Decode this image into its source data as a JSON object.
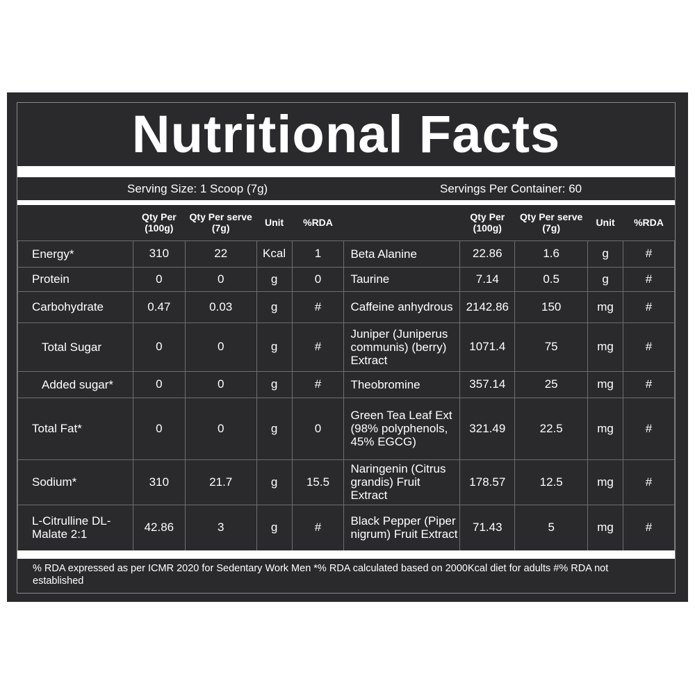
{
  "title": "Nutritional Facts",
  "serving_size": "Serving Size: 1 Scoop (7g)",
  "servings_per_container": "Servings Per Container: 60",
  "headers": {
    "qty100": "Qty Per (100g)",
    "qtyserve": "Qty Per serve (7g)",
    "unit": "Unit",
    "rda": "%RDA"
  },
  "rows": [
    {
      "left": [
        "Energy*",
        "310",
        "22",
        "Kcal",
        "1"
      ],
      "right": [
        "Beta Alanine",
        "22.86",
        "1.6",
        "g",
        "#"
      ]
    },
    {
      "left": [
        "Protein",
        "0",
        "0",
        "g",
        "0"
      ],
      "right": [
        "Taurine",
        "7.14",
        "0.5",
        "g",
        "#"
      ]
    },
    {
      "left": [
        "Carbohydrate",
        "0.47",
        "0.03",
        "g",
        "#"
      ],
      "right": [
        "Caffeine anhydrous",
        "2142.86",
        "150",
        "mg",
        "#"
      ]
    },
    {
      "left": [
        "Total Sugar",
        "0",
        "0",
        "g",
        "#"
      ],
      "right": [
        "Juniper (Juniperus communis) (berry) Extract",
        "1071.4",
        "75",
        "mg",
        "#"
      ]
    },
    {
      "left": [
        "Added sugar*",
        "0",
        "0",
        "g",
        "#"
      ],
      "right": [
        "Theobromine",
        "357.14",
        "25",
        "mg",
        "#"
      ]
    },
    {
      "left": [
        "Total Fat*",
        "0",
        "0",
        "g",
        "0"
      ],
      "right": [
        "Green Tea Leaf Ext (98% polyphenols, 45% EGCG)",
        "321.49",
        "22.5",
        "mg",
        "#"
      ]
    },
    {
      "left": [
        "Sodium*",
        "310",
        "21.7",
        "g",
        "15.5"
      ],
      "right": [
        "Naringenin (Citrus grandis) Fruit Extract",
        "178.57",
        "12.5",
        "mg",
        "#"
      ]
    },
    {
      "left": [
        "L-Citrulline DL-Malate 2:1",
        "42.86",
        "3",
        "g",
        "#"
      ],
      "right": [
        "Black Pepper (Piper nigrum) Fruit Extract",
        "71.43",
        "5",
        "mg",
        "#"
      ]
    }
  ],
  "footer": "% RDA expressed as per ICMR 2020 for Sedentary Work Men  *% RDA calculated based on 2000Kcal diet for adults  #% RDA not established",
  "colors": {
    "background": "#2a292c",
    "text": "#ffffff",
    "grid": "#6e6e70"
  }
}
